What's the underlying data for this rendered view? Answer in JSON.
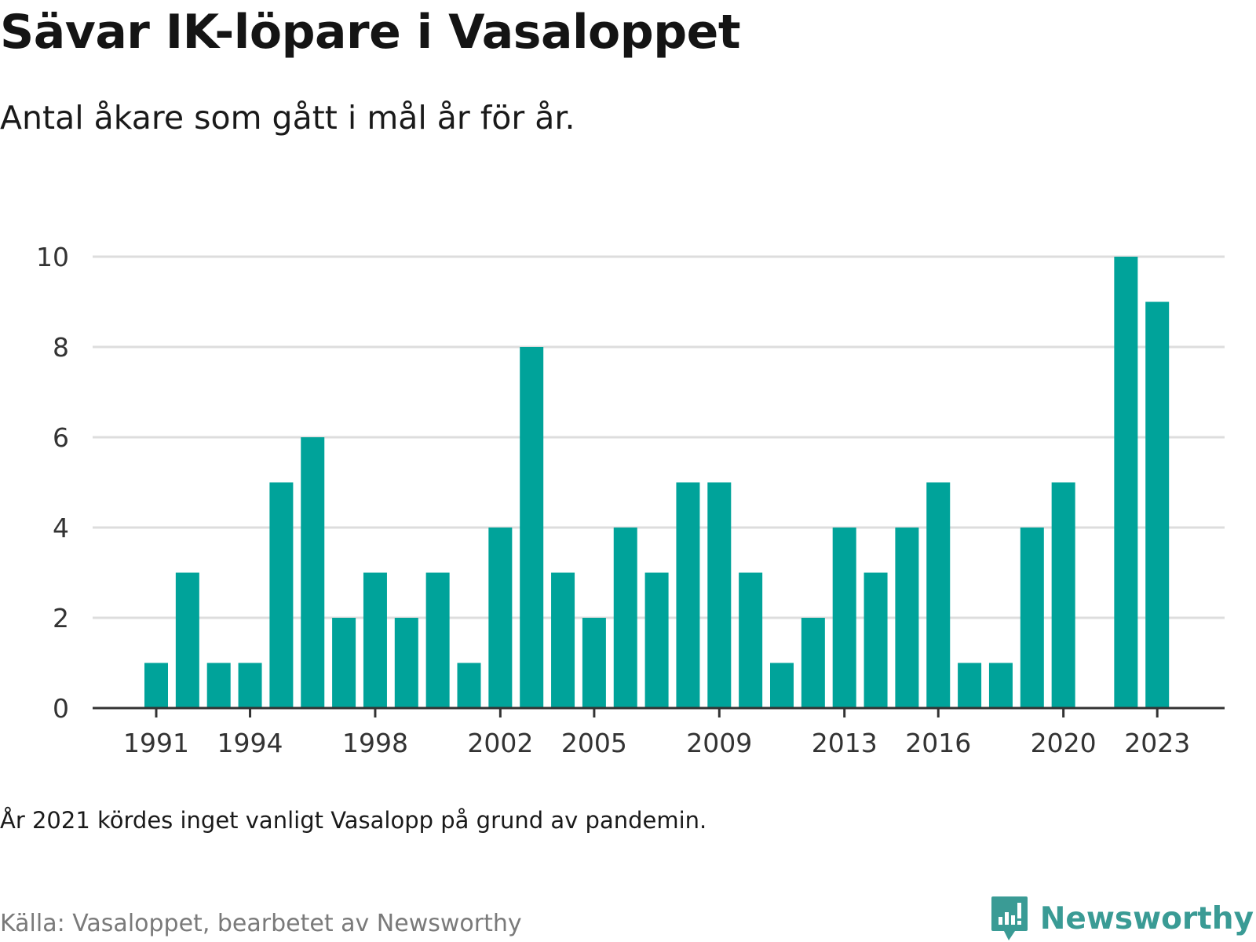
{
  "header": {
    "title": "Sävar IK-löpare i Vasaloppet",
    "subtitle": "Antal åkare som gått i mål år för år."
  },
  "footer": {
    "note": "År 2021 kördes inget vanligt Vasalopp på grund av pandemin.",
    "source": "Källa: Vasaloppet, bearbetet av Newsworthy",
    "brand_name": "Newsworthy",
    "brand_icon": "chart-bubble-icon"
  },
  "colors": {
    "bar": "#00a39a",
    "gridline": "#dddddd",
    "axis": "#333333",
    "brand": "#3a9b95"
  },
  "chart_data": {
    "type": "bar",
    "x": [
      1991,
      1992,
      1993,
      1994,
      1995,
      1996,
      1997,
      1998,
      1999,
      2000,
      2001,
      2002,
      2003,
      2004,
      2005,
      2006,
      2007,
      2008,
      2009,
      2010,
      2011,
      2012,
      2013,
      2014,
      2015,
      2016,
      2017,
      2018,
      2019,
      2020,
      2021,
      2022,
      2023
    ],
    "values": [
      1,
      3,
      1,
      1,
      5,
      6,
      2,
      3,
      2,
      3,
      1,
      4,
      8,
      3,
      2,
      4,
      3,
      5,
      5,
      3,
      1,
      2,
      4,
      3,
      4,
      5,
      1,
      1,
      4,
      5,
      null,
      10,
      9
    ],
    "x_tick_labels": [
      "1991",
      "1994",
      "1998",
      "2002",
      "2005",
      "2009",
      "2013",
      "2016",
      "2020",
      "2023"
    ],
    "y_ticks": [
      0,
      2,
      4,
      6,
      8,
      10
    ],
    "ylim": [
      0,
      10
    ],
    "grid": true,
    "legend": "none"
  }
}
